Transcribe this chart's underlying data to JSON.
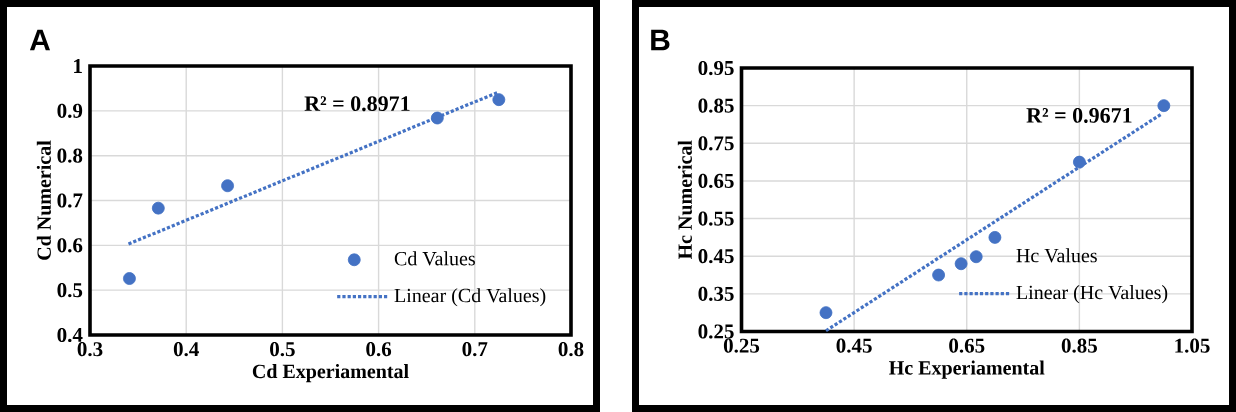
{
  "chart_data": [
    {
      "type": "scatter",
      "marker": "circle",
      "title": "A",
      "xlabel": "Cd Experiamental",
      "ylabel": "Cd Numerical",
      "series": [
        {
          "name": "Cd Values",
          "color": "#4472c4",
          "x": [
            0.341,
            0.371,
            0.443,
            0.661,
            0.725
          ],
          "values": [
            0.526,
            0.683,
            0.733,
            0.884,
            0.925
          ]
        },
        {
          "name": "Linear (Cd Values)",
          "type": "line",
          "marker": "none",
          "color": "#4472c4",
          "line_style": "dotted",
          "x": [
            0.34,
            0.725
          ],
          "values": [
            0.603,
            0.942
          ]
        }
      ],
      "xlim": [
        0.3,
        0.8
      ],
      "xticks": [
        0.3,
        0.4,
        0.5,
        0.6,
        0.7,
        0.8
      ],
      "ylim": [
        0.4,
        1
      ],
      "yticks": [
        0.4,
        0.5,
        0.6,
        0.7,
        0.8,
        0.9,
        1
      ],
      "grid": true,
      "legend": "bottom right",
      "annotations": [
        "R² = 0.8971"
      ]
    },
    {
      "type": "scatter",
      "marker": "circle",
      "title": "B",
      "xlabel": "Hc Experiamental",
      "ylabel": "Hc Numerical",
      "series": [
        {
          "name": "Hc  Values",
          "color": "#4472c4",
          "x": [
            0.4,
            0.6,
            0.64,
            0.7,
            0.85,
            1.0
          ],
          "values": [
            0.3,
            0.4,
            0.43,
            0.5,
            0.7,
            0.85
          ]
        },
        {
          "name": "Linear (Hc  Values)",
          "type": "line",
          "marker": "none",
          "color": "#4472c4",
          "line_style": "dotted",
          "x": [
            0.4,
            0.996
          ],
          "values": [
            0.252,
            0.828
          ]
        }
      ],
      "xlim": [
        0.25,
        1.05
      ],
      "xticks": [
        0.25,
        0.45,
        0.65,
        0.85,
        1.05
      ],
      "ylim": [
        0.25,
        0.95
      ],
      "yticks": [
        0.25,
        0.35,
        0.45,
        0.55,
        0.65,
        0.75,
        0.85,
        0.95
      ],
      "grid": true,
      "legend": "bottom right",
      "annotations": [
        "R² = 0.9671"
      ]
    }
  ]
}
